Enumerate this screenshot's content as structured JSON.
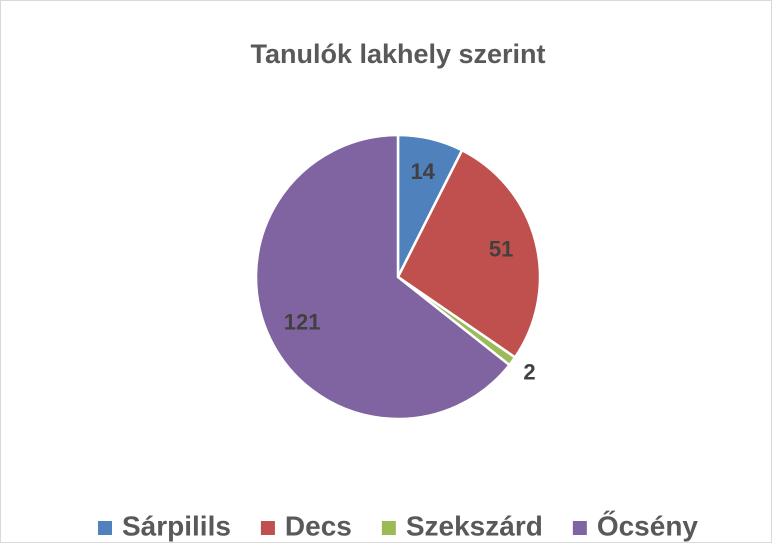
{
  "chart_data": {
    "type": "pie",
    "title": "Tanulók lakhely szerint",
    "categories": [
      "Sárpilils",
      "Decs",
      "Szekszárd",
      "Őcsény"
    ],
    "values": [
      14,
      51,
      2,
      121
    ],
    "colors": [
      "#4f81bd",
      "#c0504d",
      "#9bbb59",
      "#8064a2"
    ],
    "legend": "bottom"
  }
}
